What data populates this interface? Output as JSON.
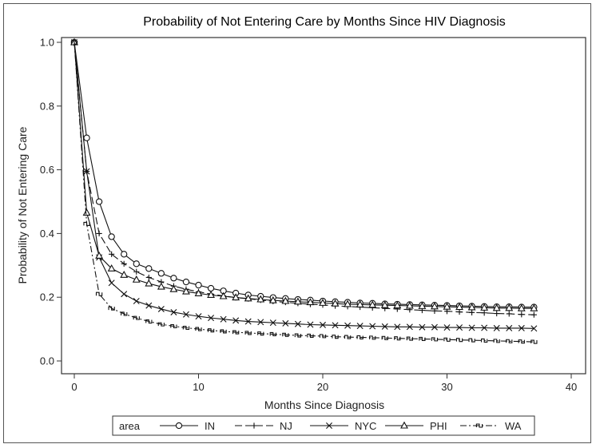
{
  "chart_data": {
    "type": "line",
    "title": "Probability of Not Entering Care by Months Since HIV Diagnosis",
    "xlabel": "Months Since Diagnosis",
    "ylabel": "Probability of Not Entering Care",
    "xlim": [
      0,
      40
    ],
    "ylim": [
      0.0,
      1.0
    ],
    "xticks": [
      "0",
      "10",
      "20",
      "30",
      "40"
    ],
    "yticks": [
      "0.0",
      "0.2",
      "0.4",
      "0.6",
      "0.8",
      "1.0"
    ],
    "grid": false,
    "legend_position": "bottom",
    "legend_title": "area",
    "x": [
      0,
      1,
      2,
      3,
      4,
      5,
      6,
      7,
      8,
      9,
      10,
      11,
      12,
      13,
      14,
      15,
      16,
      17,
      18,
      19,
      20,
      21,
      22,
      23,
      24,
      25,
      26,
      27,
      28,
      29,
      30,
      31,
      32,
      33,
      34,
      35,
      36,
      37
    ],
    "series": [
      {
        "name": "IN",
        "marker": "circle",
        "dash": "solid",
        "values": [
          1.0,
          0.7,
          0.5,
          0.39,
          0.335,
          0.305,
          0.29,
          0.275,
          0.26,
          0.248,
          0.238,
          0.228,
          0.22,
          0.213,
          0.207,
          0.203,
          0.199,
          0.196,
          0.193,
          0.191,
          0.188,
          0.186,
          0.184,
          0.182,
          0.181,
          0.179,
          0.178,
          0.177,
          0.176,
          0.175,
          0.174,
          0.173,
          0.172,
          0.171,
          0.17,
          0.17,
          0.169,
          0.169
        ]
      },
      {
        "name": "NJ",
        "marker": "plus",
        "dash": "longdash",
        "values": [
          1.0,
          0.595,
          0.4,
          0.335,
          0.305,
          0.28,
          0.262,
          0.248,
          0.235,
          0.225,
          0.217,
          0.21,
          0.204,
          0.199,
          0.195,
          0.191,
          0.187,
          0.184,
          0.181,
          0.178,
          0.176,
          0.173,
          0.171,
          0.169,
          0.167,
          0.165,
          0.163,
          0.161,
          0.159,
          0.157,
          0.156,
          0.154,
          0.152,
          0.151,
          0.149,
          0.148,
          0.146,
          0.145
        ]
      },
      {
        "name": "NYC",
        "marker": "x",
        "dash": "solid",
        "values": [
          1.0,
          0.595,
          0.325,
          0.245,
          0.21,
          0.188,
          0.174,
          0.163,
          0.153,
          0.146,
          0.14,
          0.135,
          0.131,
          0.127,
          0.124,
          0.122,
          0.12,
          0.118,
          0.116,
          0.114,
          0.113,
          0.112,
          0.111,
          0.11,
          0.109,
          0.108,
          0.107,
          0.107,
          0.106,
          0.106,
          0.105,
          0.105,
          0.104,
          0.104,
          0.103,
          0.103,
          0.103,
          0.102
        ]
      },
      {
        "name": "PHI",
        "marker": "triangle",
        "dash": "solid",
        "values": [
          1.0,
          0.465,
          0.33,
          0.29,
          0.27,
          0.255,
          0.243,
          0.233,
          0.225,
          0.218,
          0.212,
          0.207,
          0.203,
          0.199,
          0.196,
          0.193,
          0.19,
          0.188,
          0.186,
          0.184,
          0.182,
          0.18,
          0.178,
          0.177,
          0.176,
          0.175,
          0.174,
          0.173,
          0.172,
          0.171,
          0.17,
          0.169,
          0.168,
          0.167,
          0.166,
          0.166,
          0.165,
          0.165
        ]
      },
      {
        "name": "WA",
        "marker": "squiggle",
        "dash": "dashdot",
        "values": [
          1.0,
          0.43,
          0.21,
          0.165,
          0.148,
          0.135,
          0.124,
          0.115,
          0.109,
          0.104,
          0.1,
          0.096,
          0.093,
          0.09,
          0.088,
          0.086,
          0.084,
          0.082,
          0.08,
          0.079,
          0.078,
          0.076,
          0.075,
          0.074,
          0.073,
          0.072,
          0.071,
          0.07,
          0.069,
          0.068,
          0.067,
          0.066,
          0.065,
          0.064,
          0.063,
          0.062,
          0.061,
          0.06
        ]
      }
    ]
  }
}
